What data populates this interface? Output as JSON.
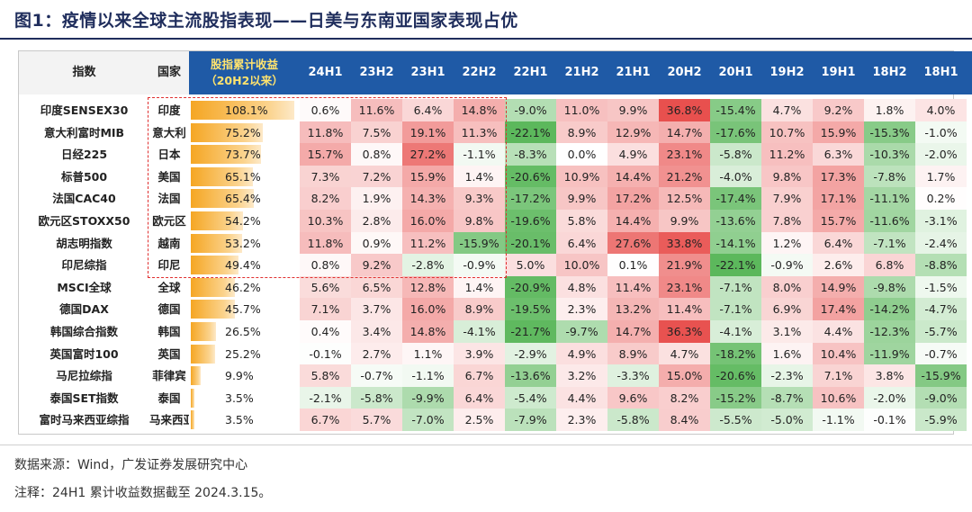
{
  "title": "图1：疫情以来全球主流股指表现——日美与东南亚国家表现占优",
  "source": "数据来源：Wind，广发证券发展研究中心",
  "note": "注释：24H1 累计收益数据截至 2024.3.15。",
  "chart_data": {
    "type": "table",
    "header": {
      "index": "指数",
      "country": "国家",
      "cumulative_line1": "股指累计收益",
      "cumulative_line2": "（20H2以来）",
      "periods": [
        "24H1",
        "23H2",
        "23H1",
        "22H2",
        "22H1",
        "21H2",
        "21H1",
        "20H2",
        "20H1",
        "19H2",
        "19H1",
        "18H2",
        "18H1"
      ]
    },
    "rows": [
      {
        "name": "印度SENSEX30",
        "country": "印度",
        "cum": 108.1,
        "cum_label": "108.1%",
        "values": [
          0.6,
          11.6,
          6.4,
          14.8,
          -9.0,
          11.0,
          9.9,
          36.8,
          -15.4,
          4.7,
          9.2,
          1.8,
          4.0
        ],
        "labels": [
          "0.6%",
          "11.6%",
          "6.4%",
          "14.8%",
          "-9.0%",
          "11.0%",
          "9.9%",
          "36.8%",
          "-15.4%",
          "4.7%",
          "9.2%",
          "1.8%",
          "4.0%"
        ]
      },
      {
        "name": "意大利富时MIB",
        "country": "意大利",
        "cum": 75.2,
        "cum_label": "75.2%",
        "values": [
          11.8,
          7.5,
          19.1,
          11.3,
          -22.1,
          8.9,
          12.9,
          14.7,
          -17.6,
          10.7,
          15.9,
          -15.3,
          -1.0
        ],
        "labels": [
          "11.8%",
          "7.5%",
          "19.1%",
          "11.3%",
          "-22.1%",
          "8.9%",
          "12.9%",
          "14.7%",
          "-17.6%",
          "10.7%",
          "15.9%",
          "-15.3%",
          "-1.0%"
        ]
      },
      {
        "name": "日经225",
        "country": "日本",
        "cum": 73.7,
        "cum_label": "73.7%",
        "values": [
          15.7,
          0.8,
          27.2,
          -1.1,
          -8.3,
          0.0,
          4.9,
          23.1,
          -5.8,
          11.2,
          6.3,
          -10.3,
          -2.0
        ],
        "labels": [
          "15.7%",
          "0.8%",
          "27.2%",
          "-1.1%",
          "-8.3%",
          "0.0%",
          "4.9%",
          "23.1%",
          "-5.8%",
          "11.2%",
          "6.3%",
          "-10.3%",
          "-2.0%"
        ]
      },
      {
        "name": "标普500",
        "country": "美国",
        "cum": 65.1,
        "cum_label": "65.1%",
        "values": [
          7.3,
          7.2,
          15.9,
          1.4,
          -20.6,
          10.9,
          14.4,
          21.2,
          -4.0,
          9.8,
          17.3,
          -7.8,
          1.7
        ],
        "labels": [
          "7.3%",
          "7.2%",
          "15.9%",
          "1.4%",
          "-20.6%",
          "10.9%",
          "14.4%",
          "21.2%",
          "-4.0%",
          "9.8%",
          "17.3%",
          "-7.8%",
          "1.7%"
        ]
      },
      {
        "name": "法国CAC40",
        "country": "法国",
        "cum": 65.4,
        "cum_label": "65.4%",
        "values": [
          8.2,
          1.9,
          14.3,
          9.3,
          -17.2,
          9.9,
          17.2,
          12.5,
          -17.4,
          7.9,
          17.1,
          -11.1,
          0.2
        ],
        "labels": [
          "8.2%",
          "1.9%",
          "14.3%",
          "9.3%",
          "-17.2%",
          "9.9%",
          "17.2%",
          "12.5%",
          "-17.4%",
          "7.9%",
          "17.1%",
          "-11.1%",
          "0.2%"
        ]
      },
      {
        "name": "欧元区STOXX50",
        "country": "欧元区",
        "cum": 54.2,
        "cum_label": "54.2%",
        "values": [
          10.3,
          2.8,
          16.0,
          9.8,
          -19.6,
          5.8,
          14.4,
          9.9,
          -13.6,
          7.8,
          15.7,
          -11.6,
          -3.1
        ],
        "labels": [
          "10.3%",
          "2.8%",
          "16.0%",
          "9.8%",
          "-19.6%",
          "5.8%",
          "14.4%",
          "9.9%",
          "-13.6%",
          "7.8%",
          "15.7%",
          "-11.6%",
          "-3.1%"
        ]
      },
      {
        "name": "胡志明指数",
        "country": "越南",
        "cum": 53.2,
        "cum_label": "53.2%",
        "values": [
          11.8,
          0.9,
          11.2,
          -15.9,
          -20.1,
          6.4,
          27.6,
          33.8,
          -14.1,
          1.2,
          6.4,
          -7.1,
          -2.4
        ],
        "labels": [
          "11.8%",
          "0.9%",
          "11.2%",
          "-15.9%",
          "-20.1%",
          "6.4%",
          "27.6%",
          "33.8%",
          "-14.1%",
          "1.2%",
          "6.4%",
          "-7.1%",
          "-2.4%"
        ]
      },
      {
        "name": "印尼综指",
        "country": "印尼",
        "cum": 49.4,
        "cum_label": "49.4%",
        "values": [
          0.8,
          9.2,
          -2.8,
          -0.9,
          5.0,
          10.0,
          0.1,
          21.9,
          -22.1,
          -0.9,
          2.6,
          6.8,
          -8.8
        ],
        "labels": [
          "0.8%",
          "9.2%",
          "-2.8%",
          "-0.9%",
          "5.0%",
          "10.0%",
          "0.1%",
          "21.9%",
          "-22.1%",
          "-0.9%",
          "2.6%",
          "6.8%",
          "-8.8%"
        ]
      },
      {
        "name": "MSCI全球",
        "country": "全球",
        "cum": 46.2,
        "cum_label": "46.2%",
        "values": [
          5.6,
          6.5,
          12.8,
          1.4,
          -20.9,
          4.8,
          11.4,
          23.1,
          -7.1,
          8.0,
          14.9,
          -9.8,
          -1.5
        ],
        "labels": [
          "5.6%",
          "6.5%",
          "12.8%",
          "1.4%",
          "-20.9%",
          "4.8%",
          "11.4%",
          "23.1%",
          "-7.1%",
          "8.0%",
          "14.9%",
          "-9.8%",
          "-1.5%"
        ]
      },
      {
        "name": "德国DAX",
        "country": "德国",
        "cum": 45.7,
        "cum_label": "45.7%",
        "values": [
          7.1,
          3.7,
          16.0,
          8.9,
          -19.5,
          2.3,
          13.2,
          11.4,
          -7.1,
          6.9,
          17.4,
          -14.2,
          -4.7
        ],
        "labels": [
          "7.1%",
          "3.7%",
          "16.0%",
          "8.9%",
          "-19.5%",
          "2.3%",
          "13.2%",
          "11.4%",
          "-7.1%",
          "6.9%",
          "17.4%",
          "-14.2%",
          "-4.7%"
        ]
      },
      {
        "name": "韩国综合指数",
        "country": "韩国",
        "cum": 26.5,
        "cum_label": "26.5%",
        "values": [
          0.4,
          3.4,
          14.8,
          -4.1,
          -21.7,
          -9.7,
          14.7,
          36.3,
          -4.1,
          3.1,
          4.4,
          -12.3,
          -5.7
        ],
        "labels": [
          "0.4%",
          "3.4%",
          "14.8%",
          "-4.1%",
          "-21.7%",
          "-9.7%",
          "14.7%",
          "36.3%",
          "-4.1%",
          "3.1%",
          "4.4%",
          "-12.3%",
          "-5.7%"
        ]
      },
      {
        "name": "英国富时100",
        "country": "英国",
        "cum": 25.2,
        "cum_label": "25.2%",
        "values": [
          -0.1,
          2.7,
          1.1,
          3.9,
          -2.9,
          4.9,
          8.9,
          4.7,
          -18.2,
          1.6,
          10.4,
          -11.9,
          -0.7
        ],
        "labels": [
          "-0.1%",
          "2.7%",
          "1.1%",
          "3.9%",
          "-2.9%",
          "4.9%",
          "8.9%",
          "4.7%",
          "-18.2%",
          "1.6%",
          "10.4%",
          "-11.9%",
          "-0.7%"
        ]
      },
      {
        "name": "马尼拉综指",
        "country": "菲律宾",
        "cum": 9.9,
        "cum_label": "9.9%",
        "values": [
          5.8,
          -0.7,
          -1.1,
          6.7,
          -13.6,
          3.2,
          -3.3,
          15.0,
          -20.6,
          -2.3,
          7.1,
          3.8,
          -15.9
        ],
        "labels": [
          "5.8%",
          "-0.7%",
          "-1.1%",
          "6.7%",
          "-13.6%",
          "3.2%",
          "-3.3%",
          "15.0%",
          "-20.6%",
          "-2.3%",
          "7.1%",
          "3.8%",
          "-15.9%"
        ]
      },
      {
        "name": "泰国SET指数",
        "country": "泰国",
        "cum": 3.5,
        "cum_label": "3.5%",
        "values": [
          -2.1,
          -5.8,
          -9.9,
          6.4,
          -5.4,
          4.4,
          9.6,
          8.2,
          -15.2,
          -8.7,
          10.6,
          -2.0,
          -9.0
        ],
        "labels": [
          "-2.1%",
          "-5.8%",
          "-9.9%",
          "6.4%",
          "-5.4%",
          "4.4%",
          "9.6%",
          "8.2%",
          "-15.2%",
          "-8.7%",
          "10.6%",
          "-2.0%",
          "-9.0%"
        ]
      },
      {
        "name": "富时马来西亚综指",
        "country": "马来西亚",
        "cum": 3.5,
        "cum_label": "3.5%",
        "values": [
          6.7,
          5.7,
          -7.0,
          2.5,
          -7.9,
          2.3,
          -5.8,
          8.4,
          -5.5,
          -5.0,
          -1.1,
          -0.1,
          -5.9
        ],
        "labels": [
          "6.7%",
          "5.7%",
          "-7.0%",
          "2.5%",
          "-7.9%",
          "2.3%",
          "-5.8%",
          "8.4%",
          "-5.5%",
          "-5.0%",
          "-1.1%",
          "-0.1%",
          "-5.9%"
        ]
      }
    ],
    "colors": {
      "header_bg": "#1f5aa6",
      "header_cum_text": "#ffe36e",
      "bar": "#f5a623",
      "positive_max": "#e8504e",
      "negative_max": "#5cb85c",
      "neutral": "#ffffff",
      "highlight_box": "#e03030"
    },
    "highlight": {
      "rows": 8,
      "cols": [
        "24H1",
        "23H2",
        "23H1",
        "22H2"
      ],
      "style": "dashed-red"
    }
  }
}
